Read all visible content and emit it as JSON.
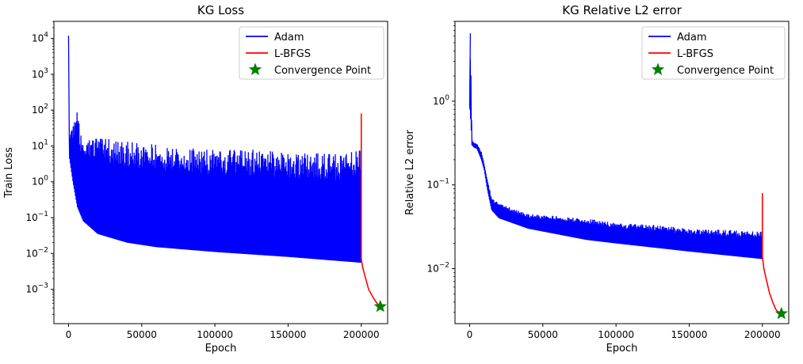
{
  "chart_data": [
    {
      "type": "line",
      "title": "KG Loss",
      "xlabel": "Epoch",
      "ylabel": "Train Loss",
      "yscale": "log",
      "xlim": [
        -10000,
        218000
      ],
      "ylim": [
        0.00011,
        30000
      ],
      "xticks": [
        0,
        50000,
        100000,
        150000,
        200000
      ],
      "xtick_labels": [
        "0",
        "50000",
        "100000",
        "150000",
        "200000"
      ],
      "yticks": [
        0.001,
        0.01,
        0.1,
        1,
        10,
        100,
        1000,
        10000
      ],
      "ytick_labels": [
        "10",
        "10",
        "10",
        "10",
        "10",
        "10",
        "10",
        "10"
      ],
      "ytick_exps": [
        "−3",
        "−2",
        "−1",
        "0",
        "1",
        "2",
        "3",
        "4"
      ],
      "legend": {
        "placement": "top-right",
        "entries": [
          {
            "label": "Adam",
            "color": "#0000ff",
            "marker": "line"
          },
          {
            "label": "L-BFGS",
            "color": "#ff0000",
            "marker": "line"
          },
          {
            "label": "Convergence Point",
            "color": "#008000",
            "marker": "star"
          }
        ]
      },
      "series": [
        {
          "name": "Adam",
          "color": "#0000ff",
          "style": "oscillating-band",
          "peak": {
            "x": 0,
            "y": 12000
          },
          "upper": [
            [
              500,
              25
            ],
            [
              5000,
              60
            ],
            [
              6000,
              120
            ],
            [
              8000,
              20
            ],
            [
              20000,
              18
            ],
            [
              50000,
              12
            ],
            [
              100000,
              8
            ],
            [
              130000,
              8
            ],
            [
              150000,
              7
            ],
            [
              180000,
              6
            ],
            [
              200000,
              9
            ]
          ],
          "lower": [
            [
              500,
              5
            ],
            [
              3000,
              1
            ],
            [
              6000,
              0.2
            ],
            [
              10000,
              0.08
            ],
            [
              20000,
              0.035
            ],
            [
              40000,
              0.02
            ],
            [
              60000,
              0.015
            ],
            [
              100000,
              0.011
            ],
            [
              150000,
              0.008
            ],
            [
              200000,
              0.0055
            ]
          ]
        },
        {
          "name": "L-BFGS",
          "color": "#ff0000",
          "points": [
            [
              200000,
              80
            ],
            [
              200000,
              0.007
            ],
            [
              201000,
              0.004
            ],
            [
              203000,
              0.002
            ],
            [
              205000,
              0.001
            ],
            [
              208000,
              0.0006
            ],
            [
              210000,
              0.00045
            ],
            [
              212000,
              0.00035
            ],
            [
              213000,
              0.00033
            ]
          ]
        },
        {
          "name": "Convergence Point",
          "color": "#008000",
          "marker": "star",
          "points": [
            [
              213000,
              0.00033
            ]
          ]
        }
      ]
    },
    {
      "type": "line",
      "title": "KG Relative L2 error",
      "xlabel": "Epoch",
      "ylabel": "Relative L2 error",
      "yscale": "log",
      "xlim": [
        -10000,
        218000
      ],
      "ylim": [
        0.0022,
        9
      ],
      "xticks": [
        0,
        50000,
        100000,
        150000,
        200000
      ],
      "xtick_labels": [
        "0",
        "50000",
        "100000",
        "150000",
        "200000"
      ],
      "yticks": [
        0.01,
        0.1,
        1
      ],
      "ytick_labels": [
        "10",
        "10",
        "10"
      ],
      "ytick_exps": [
        "−2",
        "−1",
        "0"
      ],
      "legend": {
        "placement": "top-right",
        "entries": [
          {
            "label": "Adam",
            "color": "#0000ff",
            "marker": "line"
          },
          {
            "label": "L-BFGS",
            "color": "#ff0000",
            "marker": "line"
          },
          {
            "label": "Convergence Point",
            "color": "#008000",
            "marker": "star"
          }
        ]
      },
      "series": [
        {
          "name": "Adam",
          "color": "#0000ff",
          "style": "oscillating-band",
          "peak": {
            "x": 500,
            "y": 6.5
          },
          "upper": [
            [
              0,
              0.9
            ],
            [
              500,
              6.5
            ],
            [
              1000,
              2
            ],
            [
              1500,
              0.35
            ],
            [
              3000,
              0.32
            ],
            [
              5000,
              0.31
            ],
            [
              8000,
              0.25
            ],
            [
              10000,
              0.18
            ],
            [
              12000,
              0.12
            ],
            [
              15000,
              0.07
            ],
            [
              20000,
              0.06
            ],
            [
              40000,
              0.045
            ],
            [
              80000,
              0.04
            ],
            [
              100000,
              0.035
            ],
            [
              130000,
              0.033
            ],
            [
              150000,
              0.03
            ],
            [
              200000,
              0.028
            ]
          ],
          "lower": [
            [
              0,
              0.9
            ],
            [
              1000,
              0.5
            ],
            [
              1500,
              0.3
            ],
            [
              3000,
              0.28
            ],
            [
              5000,
              0.27
            ],
            [
              8000,
              0.2
            ],
            [
              10000,
              0.15
            ],
            [
              12000,
              0.09
            ],
            [
              15000,
              0.05
            ],
            [
              20000,
              0.04
            ],
            [
              40000,
              0.03
            ],
            [
              80000,
              0.022
            ],
            [
              100000,
              0.02
            ],
            [
              150000,
              0.016
            ],
            [
              200000,
              0.013
            ]
          ]
        },
        {
          "name": "L-BFGS",
          "color": "#ff0000",
          "points": [
            [
              200000,
              0.08
            ],
            [
              200000,
              0.014
            ],
            [
              201000,
              0.01
            ],
            [
              203000,
              0.007
            ],
            [
              205000,
              0.005
            ],
            [
              207000,
              0.004
            ],
            [
              209000,
              0.0033
            ],
            [
              211000,
              0.003
            ],
            [
              213000,
              0.0029
            ]
          ]
        },
        {
          "name": "Convergence Point",
          "color": "#008000",
          "marker": "star",
          "points": [
            [
              213000,
              0.0029
            ]
          ]
        }
      ]
    }
  ]
}
